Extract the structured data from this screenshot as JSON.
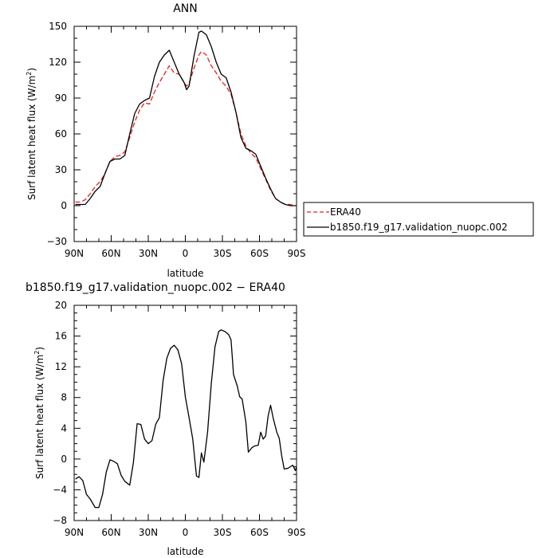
{
  "chart_data": [
    {
      "type": "line",
      "title": "ANN",
      "xlabel": "latitude",
      "ylabel": "Surf latent heat flux (W/m²)",
      "ylabel_parts": [
        "Surf latent heat flux (W/m",
        "2",
        ")"
      ],
      "x_tick_labels": [
        "90N",
        "60N",
        "30N",
        "0",
        "30S",
        "60S",
        "90S"
      ],
      "x_tick_values": [
        90,
        60,
        30,
        0,
        -30,
        -60,
        -90
      ],
      "xlim": [
        90,
        -90
      ],
      "ylim": [
        -30,
        150
      ],
      "y_ticks": [
        -30,
        0,
        30,
        60,
        90,
        120,
        150
      ],
      "y_tick_labels": [
        "−30",
        "0",
        "30",
        "60",
        "90",
        "120",
        "150"
      ],
      "legend_placement": "right",
      "series": [
        {
          "name": "ERA40",
          "color": "#e8201c",
          "dash": "dashed",
          "points": [
            [
              89,
              3
            ],
            [
              85,
              3
            ],
            [
              81,
              5
            ],
            [
              77,
              10
            ],
            [
              73,
              16
            ],
            [
              69,
              20
            ],
            [
              65,
              27
            ],
            [
              61,
              37
            ],
            [
              57,
              41
            ],
            [
              53,
              42
            ],
            [
              49,
              45
            ],
            [
              45,
              57
            ],
            [
              41,
              70
            ],
            [
              37,
              80
            ],
            [
              33,
              86
            ],
            [
              29,
              85
            ],
            [
              25,
              95
            ],
            [
              21,
              103
            ],
            [
              17,
              110
            ],
            [
              13,
              117
            ],
            [
              9,
              111
            ],
            [
              5,
              110
            ],
            [
              1,
              103
            ],
            [
              -1,
              100
            ],
            [
              -3,
              102
            ],
            [
              -7,
              115
            ],
            [
              -11,
              126
            ],
            [
              -13,
              129
            ],
            [
              -17,
              126
            ],
            [
              -21,
              117
            ],
            [
              -25,
              111
            ],
            [
              -29,
              104
            ],
            [
              -33,
              100
            ],
            [
              -37,
              93
            ],
            [
              -41,
              78
            ],
            [
              -45,
              60
            ],
            [
              -49,
              50
            ],
            [
              -53,
              44
            ],
            [
              -57,
              40
            ],
            [
              -61,
              31
            ],
            [
              -65,
              22
            ],
            [
              -69,
              13
            ],
            [
              -73,
              6
            ],
            [
              -77,
              3
            ],
            [
              -81,
              1
            ],
            [
              -85,
              1
            ],
            [
              -89,
              0
            ]
          ]
        },
        {
          "name": "b1850.f19_g17.validation_nuopc.002",
          "color": "#000000",
          "dash": "solid",
          "points": [
            [
              89,
              1
            ],
            [
              85,
              1
            ],
            [
              81,
              1
            ],
            [
              77,
              6
            ],
            [
              73,
              12
            ],
            [
              69,
              16
            ],
            [
              65,
              27
            ],
            [
              61,
              37
            ],
            [
              57,
              39
            ],
            [
              53,
              39
            ],
            [
              49,
              42
            ],
            [
              45,
              60
            ],
            [
              41,
              77
            ],
            [
              37,
              85
            ],
            [
              33,
              88
            ],
            [
              29,
              90
            ],
            [
              25,
              108
            ],
            [
              21,
              120
            ],
            [
              17,
              126
            ],
            [
              13,
              130
            ],
            [
              9,
              120
            ],
            [
              5,
              110
            ],
            [
              1,
              103
            ],
            [
              -1,
              97
            ],
            [
              -3,
              100
            ],
            [
              -7,
              125
            ],
            [
              -11,
              145
            ],
            [
              -13,
              146
            ],
            [
              -17,
              143
            ],
            [
              -21,
              133
            ],
            [
              -25,
              120
            ],
            [
              -29,
              110
            ],
            [
              -33,
              107
            ],
            [
              -37,
              95
            ],
            [
              -41,
              78
            ],
            [
              -45,
              57
            ],
            [
              -49,
              48
            ],
            [
              -53,
              46
            ],
            [
              -57,
              43
            ],
            [
              -61,
              33
            ],
            [
              -65,
              23
            ],
            [
              -69,
              14
            ],
            [
              -73,
              6
            ],
            [
              -77,
              3
            ],
            [
              -81,
              1
            ],
            [
              -85,
              0
            ],
            [
              -89,
              0
            ]
          ]
        }
      ]
    },
    {
      "type": "line",
      "title": "b1850.f19_g17.validation_nuopc.002 − ERA40",
      "xlabel": "latitude",
      "ylabel": "Surf latent heat flux (W/m²)",
      "ylabel_parts": [
        "Surf latent heat flux (W/m",
        "2",
        ")"
      ],
      "x_tick_labels": [
        "90N",
        "60N",
        "30N",
        "0",
        "30S",
        "60S",
        "90S"
      ],
      "x_tick_values": [
        90,
        60,
        30,
        0,
        -30,
        -60,
        -90
      ],
      "xlim": [
        90,
        -90
      ],
      "ylim": [
        -8,
        20
      ],
      "y_ticks": [
        -8,
        -4,
        0,
        4,
        8,
        12,
        16,
        20
      ],
      "y_tick_labels": [
        "−8",
        "−4",
        "0",
        "4",
        "8",
        "12",
        "16",
        "20"
      ],
      "series": [
        {
          "color": "#000000",
          "dash": "solid",
          "points": [
            [
              89,
              -2.6
            ],
            [
              86,
              -2.3
            ],
            [
              83,
              -2.8
            ],
            [
              80,
              -4.6
            ],
            [
              77,
              -5.2
            ],
            [
              73,
              -6.3
            ],
            [
              70,
              -6.3
            ],
            [
              67,
              -4.6
            ],
            [
              64,
              -1.7
            ],
            [
              61,
              -0.1
            ],
            [
              58,
              -0.3
            ],
            [
              55,
              -0.6
            ],
            [
              52,
              -2.1
            ],
            [
              49,
              -2.9
            ],
            [
              45,
              -3.4
            ],
            [
              42,
              -0.4
            ],
            [
              39,
              4.6
            ],
            [
              36,
              4.5
            ],
            [
              33,
              2.6
            ],
            [
              30,
              2.0
            ],
            [
              27,
              2.4
            ],
            [
              24,
              4.5
            ],
            [
              21,
              5.4
            ],
            [
              18,
              10.2
            ],
            [
              15,
              13.1
            ],
            [
              12,
              14.4
            ],
            [
              9,
              14.8
            ],
            [
              6,
              14.2
            ],
            [
              3,
              12.4
            ],
            [
              0,
              8.1
            ],
            [
              -3,
              5.4
            ],
            [
              -6,
              2.6
            ],
            [
              -9,
              -2.2
            ],
            [
              -11,
              -2.4
            ],
            [
              -13,
              0.8
            ],
            [
              -15,
              -0.4
            ],
            [
              -18,
              3.5
            ],
            [
              -21,
              9.8
            ],
            [
              -24,
              14.6
            ],
            [
              -27,
              16.6
            ],
            [
              -29,
              16.8
            ],
            [
              -32,
              16.6
            ],
            [
              -35,
              16.2
            ],
            [
              -37,
              15.5
            ],
            [
              -39,
              11.0
            ],
            [
              -42,
              9.5
            ],
            [
              -44,
              8.1
            ],
            [
              -46,
              7.8
            ],
            [
              -49,
              4.8
            ],
            [
              -51,
              0.9
            ],
            [
              -54,
              1.5
            ],
            [
              -56,
              1.7
            ],
            [
              -59,
              1.8
            ],
            [
              -61,
              3.5
            ],
            [
              -63,
              2.6
            ],
            [
              -65,
              3.0
            ],
            [
              -67,
              5.6
            ],
            [
              -69,
              7.0
            ],
            [
              -71,
              5.4
            ],
            [
              -74,
              3.5
            ],
            [
              -76,
              2.7
            ],
            [
              -78,
              0.4
            ],
            [
              -80,
              -1.3
            ],
            [
              -83,
              -1.2
            ],
            [
              -85,
              -1.0
            ],
            [
              -87,
              -0.8
            ],
            [
              -89,
              -1.5
            ],
            [
              -91,
              -0.6
            ],
            [
              -93,
              -0.5
            ]
          ]
        }
      ]
    }
  ]
}
